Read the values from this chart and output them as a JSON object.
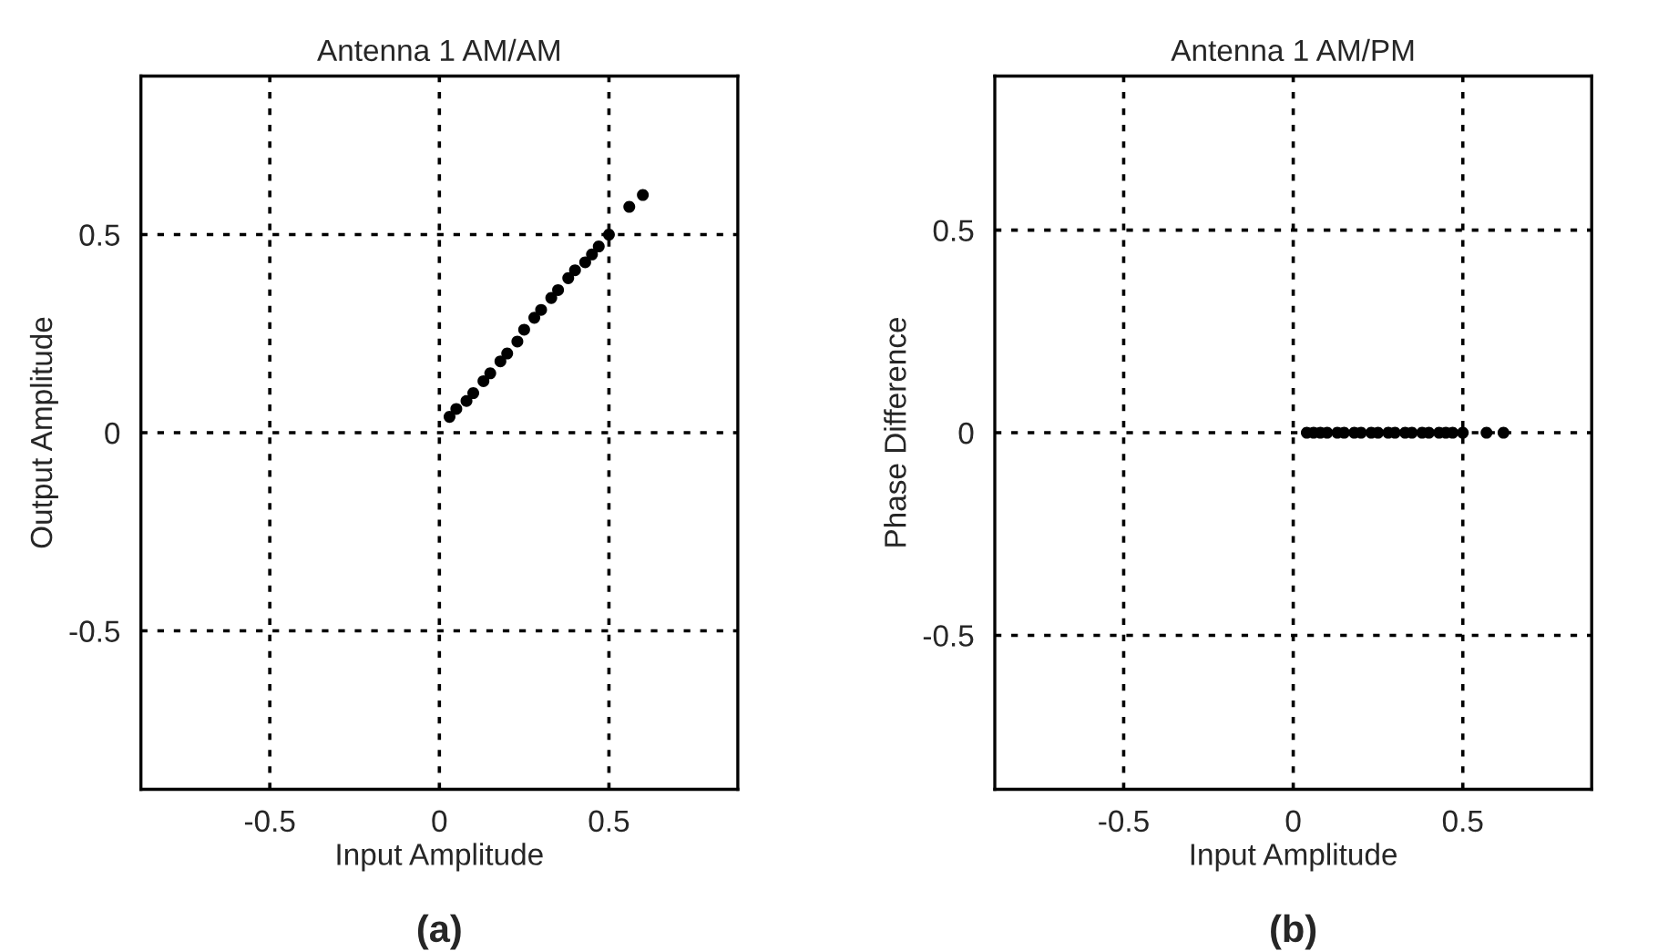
{
  "chart_data": [
    {
      "type": "scatter",
      "title": "Antenna 1 AM/AM",
      "xlabel": "Input Amplitude",
      "ylabel": "Output Amplitude",
      "annotations": [
        "(a)"
      ],
      "x": [
        0.03,
        0.05,
        0.08,
        0.1,
        0.13,
        0.15,
        0.18,
        0.2,
        0.23,
        0.25,
        0.28,
        0.3,
        0.33,
        0.35,
        0.38,
        0.4,
        0.43,
        0.45,
        0.47,
        0.5,
        0.56,
        0.6
      ],
      "series": [
        {
          "color": "#000000",
          "values": [
            0.04,
            0.06,
            0.08,
            0.1,
            0.13,
            0.15,
            0.18,
            0.2,
            0.23,
            0.26,
            0.29,
            0.31,
            0.34,
            0.36,
            0.39,
            0.41,
            0.43,
            0.45,
            0.47,
            0.5,
            0.57,
            0.6
          ]
        }
      ],
      "xlim": [
        -0.88,
        0.88
      ],
      "ylim": [
        -0.9,
        0.9
      ],
      "xticks": [
        -0.5,
        0,
        0.5
      ],
      "yticks": [
        -0.5,
        0,
        0.5
      ],
      "grid": true,
      "marker": "circle"
    },
    {
      "type": "scatter",
      "title": "Antenna 1 AM/PM",
      "xlabel": "Input Amplitude",
      "ylabel": "Phase Difference",
      "annotations": [
        "(b)"
      ],
      "x": [
        0.04,
        0.06,
        0.08,
        0.1,
        0.13,
        0.15,
        0.18,
        0.2,
        0.23,
        0.25,
        0.28,
        0.3,
        0.33,
        0.35,
        0.38,
        0.4,
        0.43,
        0.45,
        0.47,
        0.5,
        0.57,
        0.62
      ],
      "series": [
        {
          "color": "#000000",
          "values": [
            0,
            0,
            0,
            0,
            0,
            0,
            0,
            0,
            0,
            0,
            0,
            0,
            0,
            0,
            0,
            0,
            0,
            0,
            0,
            0,
            0,
            0
          ]
        }
      ],
      "xlim": [
        -0.88,
        0.88
      ],
      "ylim": [
        -0.88,
        0.88
      ],
      "xticks": [
        -0.5,
        0,
        0.5
      ],
      "yticks": [
        -0.5,
        0,
        0.5
      ],
      "grid": true,
      "marker": "circle"
    }
  ]
}
